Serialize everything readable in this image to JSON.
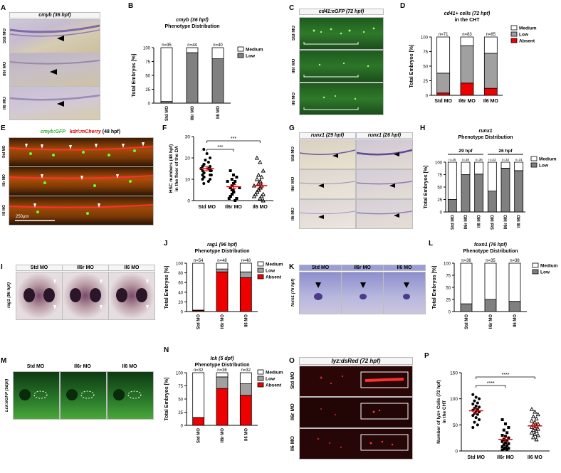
{
  "panels": {
    "A": {
      "letter": "A",
      "title": "cmyb (36 hpf)",
      "rows": [
        "Std MO",
        "Il6r MO",
        "Il6 MO"
      ]
    },
    "C": {
      "letter": "C",
      "title": "cd41:eGFP (72 hpf)",
      "rows": [
        "Std MO",
        "Il6r MO",
        "Il6 MO"
      ]
    },
    "E": {
      "letter": "E",
      "title_green": "cmyb:GFP",
      "title_red": "kdrl:mCherry",
      "title_rest": "(48 hpf)",
      "rows": [
        "Std MO",
        "Il6r MO",
        "Il6 MO"
      ],
      "scale": "250µm"
    },
    "G": {
      "letter": "G",
      "headers": [
        "runx1 (29 hpf)",
        "runx1 (26 hpf)"
      ],
      "rows": [
        "Std MO",
        "Il6r MO",
        "Il6 MO"
      ]
    },
    "I": {
      "letter": "I",
      "headers": [
        "Std MO",
        "Il6r MO",
        "Il6 MO"
      ],
      "side": "rag1 (96 hpf)"
    },
    "K": {
      "letter": "K",
      "headers": [
        "Std MO",
        "Il6r MO",
        "Il6 MO"
      ],
      "side": "foxn1 (76 hpf)"
    },
    "M": {
      "letter": "M",
      "headers": [
        "Std MO",
        "Il6r MO",
        "Il6 MO"
      ],
      "side": "Lck:eGFP (5dpf)"
    },
    "O": {
      "letter": "O",
      "title": "lyz:dsRed (72 hpf)",
      "rows": [
        "Std MO",
        "Il6r MO",
        "Il6 MO"
      ]
    }
  },
  "chart_data": [
    {
      "id": "B",
      "letter": "B",
      "type": "bar",
      "stacked": true,
      "title": "cmyb (36 hpf)",
      "subtitle": "Phenotype Distribution",
      "categories": [
        "Std MO",
        "Il6r MO",
        "Il6 MO"
      ],
      "ns": [
        "n=35",
        "n=44",
        "n=40"
      ],
      "series": [
        {
          "name": "Low",
          "color": "#808080",
          "values": [
            3,
            91,
            80
          ]
        },
        {
          "name": "Medium",
          "color": "#ffffff",
          "values": [
            97,
            9,
            20
          ]
        }
      ],
      "ylabel": "Total Embryos [%]",
      "ylim": [
        0,
        100
      ],
      "yticks": [
        "0",
        "25",
        "50",
        "75",
        "100"
      ],
      "legend": "right"
    },
    {
      "id": "D",
      "letter": "D",
      "type": "bar",
      "stacked": true,
      "title": "cd41+ cells (72 hpf)",
      "subtitle": "in the CHT",
      "categories": [
        "Std MO",
        "Il6r MO",
        "Il6 MO"
      ],
      "ns": [
        "n=71",
        "n=83",
        "n=85"
      ],
      "series": [
        {
          "name": "Absent",
          "color": "#ee0000",
          "values": [
            4,
            21,
            12
          ]
        },
        {
          "name": "Low",
          "color": "#a0a0a0",
          "values": [
            34,
            64,
            60
          ]
        },
        {
          "name": "Medium",
          "color": "#ffffff",
          "values": [
            62,
            15,
            28
          ]
        }
      ],
      "ylabel": "Total Embryos [%]",
      "ylim": [
        0,
        100
      ],
      "yticks": [
        "0",
        "25",
        "50",
        "75",
        "100"
      ],
      "legend": "right"
    },
    {
      "id": "F",
      "letter": "F",
      "type": "scatter",
      "title": "",
      "categories": [
        "Std MO",
        "Il6r MO",
        "Il6 MO"
      ],
      "ylabel": "HSC numbers (48 hpf) in the floor of the DA",
      "ylim": [
        0,
        30
      ],
      "yticks": [
        "0",
        "10",
        "20",
        "30"
      ],
      "means": [
        15,
        6.5,
        7
      ],
      "sem": [
        1,
        0.9,
        1.1
      ],
      "markers": [
        "circle",
        "square",
        "triangle"
      ],
      "points": [
        [
          24,
          22,
          20,
          19,
          18,
          17,
          17,
          16,
          16,
          15,
          15,
          15,
          14,
          14,
          14,
          13,
          13,
          12,
          12,
          12,
          11,
          11,
          10,
          10,
          9,
          8
        ],
        [
          14,
          12,
          11,
          10,
          9,
          9,
          8,
          8,
          7,
          7,
          6,
          6,
          6,
          5,
          5,
          5,
          4,
          4,
          3,
          3,
          2,
          2,
          1,
          1,
          0
        ],
        [
          20,
          18,
          14,
          12,
          11,
          10,
          9,
          9,
          8,
          7,
          7,
          6,
          6,
          5,
          5,
          4,
          4,
          3,
          3,
          2,
          2,
          1,
          0
        ]
      ],
      "sig": [
        "***",
        "***"
      ]
    },
    {
      "id": "H",
      "letter": "H",
      "type": "bar",
      "stacked": true,
      "title": "runx1",
      "subtitle": "Phenotype Distribution",
      "groups": [
        "29 hpf",
        "26 hpf"
      ],
      "categories": [
        "Std MO",
        "Il6r MO",
        "Il6 MO",
        "Std MO",
        "Il6r MO",
        "Il6 MO"
      ],
      "ns": [
        "n=26",
        "n=38",
        "n=36",
        "n=23",
        "n=33",
        "n=31"
      ],
      "series": [
        {
          "name": "Low",
          "color": "#808080",
          "values": [
            25,
            75,
            76,
            42,
            88,
            83
          ]
        },
        {
          "name": "Medium",
          "color": "#ffffff",
          "values": [
            75,
            25,
            24,
            58,
            12,
            17
          ]
        }
      ],
      "ylabel": "Total Embryos [%]",
      "ylim": [
        0,
        100
      ],
      "yticks": [
        "0",
        "25",
        "50",
        "75",
        "100"
      ],
      "legend": "right"
    },
    {
      "id": "J",
      "letter": "J",
      "type": "bar",
      "stacked": true,
      "title": "rag1 (96 hpf)",
      "subtitle": "Phenotype Distribution",
      "categories": [
        "Std MO",
        "Il6r MO",
        "Il6 MO"
      ],
      "ns": [
        "n=54",
        "n=48",
        "n=48"
      ],
      "series": [
        {
          "name": "Absent",
          "color": "#ee0000",
          "values": [
            2,
            82,
            70
          ]
        },
        {
          "name": "Low",
          "color": "#a0a0a0",
          "values": [
            1,
            6,
            12
          ]
        },
        {
          "name": "Medium",
          "color": "#ffffff",
          "values": [
            97,
            12,
            18
          ]
        }
      ],
      "ylabel": "Total Embryos [%]",
      "ylim": [
        0,
        100
      ],
      "yticks": [
        "0",
        "20",
        "40",
        "60",
        "80",
        "100"
      ],
      "legend": "right"
    },
    {
      "id": "L",
      "letter": "L",
      "type": "bar",
      "stacked": true,
      "title": "foxn1 (76 hpf)",
      "subtitle": "Phenotype Distribution",
      "categories": [
        "Std MO",
        "Il6r MO",
        "Il6 MO"
      ],
      "ns": [
        "n=36",
        "n=35",
        "n=38"
      ],
      "series": [
        {
          "name": "Low",
          "color": "#808080",
          "values": [
            16,
            25,
            21
          ]
        },
        {
          "name": "Medium",
          "color": "#ffffff",
          "values": [
            84,
            75,
            79
          ]
        }
      ],
      "ylabel": "Total Embryos [%]",
      "ylim": [
        0,
        100
      ],
      "yticks": [
        "0",
        "25",
        "50",
        "75",
        "100"
      ],
      "legend": "right"
    },
    {
      "id": "N",
      "letter": "N",
      "type": "bar",
      "stacked": true,
      "title": "lck (5 dpf)",
      "subtitle": "Phenotype Distribution",
      "categories": [
        "Std MO",
        "Il6r MO",
        "Il6 MO"
      ],
      "ns": [
        "n=32",
        "n=36",
        "n=32"
      ],
      "series": [
        {
          "name": "Absent",
          "color": "#ee0000",
          "values": [
            15,
            70,
            57
          ]
        },
        {
          "name": "Low",
          "color": "#a0a0a0",
          "values": [
            0,
            22,
            22
          ]
        },
        {
          "name": "Medium",
          "color": "#ffffff",
          "values": [
            85,
            8,
            21
          ]
        }
      ],
      "ylabel": "Total Embryos [%]",
      "ylim": [
        0,
        100
      ],
      "yticks": [
        "0",
        "25",
        "50",
        "75",
        "100"
      ],
      "legend": "right"
    },
    {
      "id": "P",
      "letter": "P",
      "type": "scatter",
      "title": "",
      "categories": [
        "Std MO",
        "Il6r MO",
        "Il6 MO"
      ],
      "ylabel": "Number of lyz+ Cells (72 hpf) in the CHT",
      "ylim": [
        0,
        150
      ],
      "yticks": [
        "0",
        "50",
        "100",
        "150"
      ],
      "means": [
        77,
        22,
        48
      ],
      "sem": [
        5,
        4,
        4
      ],
      "markers": [
        "circle",
        "square",
        "triangle"
      ],
      "points": [
        [
          108,
          103,
          100,
          96,
          92,
          90,
          86,
          84,
          82,
          80,
          78,
          76,
          75,
          72,
          70,
          68,
          64,
          60,
          55,
          50,
          45
        ],
        [
          60,
          52,
          45,
          40,
          35,
          30,
          28,
          25,
          22,
          20,
          18,
          16,
          14,
          12,
          10,
          8,
          6,
          5,
          4,
          3,
          2
        ],
        [
          80,
          75,
          70,
          66,
          62,
          58,
          55,
          52,
          50,
          48,
          46,
          44,
          42,
          40,
          38,
          35,
          32,
          30,
          26,
          22
        ]
      ],
      "sig": [
        "****",
        "****"
      ]
    }
  ]
}
